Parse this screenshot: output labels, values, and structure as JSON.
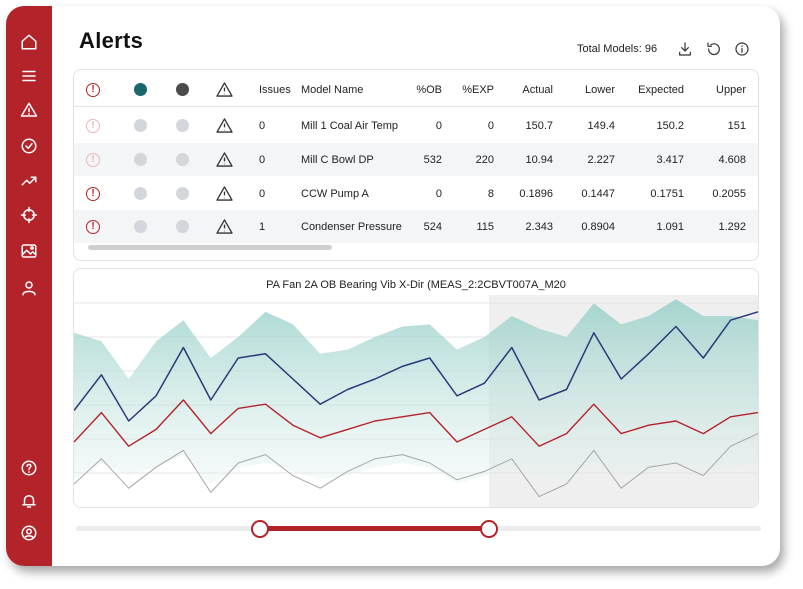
{
  "app": {
    "title": "Alerts",
    "total_models": "Total Models: 96",
    "accent": "#b3242a"
  },
  "sidebar": {
    "top_items": [
      "home-icon",
      "menu-icon",
      "warning-icon",
      "check-circle-icon",
      "trend-icon",
      "crosshair-icon",
      "image-icon",
      "user-icon"
    ],
    "bottom_items": [
      "help-icon",
      "bell-icon",
      "account-icon"
    ]
  },
  "toolbar": {
    "icons": [
      "download-icon",
      "refresh-icon",
      "info-icon"
    ]
  },
  "table": {
    "columns": {
      "alert": "!",
      "issues": "Issues",
      "model_name": "Model Name",
      "pct_ob": "%OB",
      "pct_exp": "%EXP",
      "actual": "Actual",
      "lower": "Lower",
      "expected": "Expected",
      "upper": "Upper"
    },
    "header_dot_colors": {
      "teal": "#19676d",
      "dark": "#4a4a4a"
    },
    "rows": [
      {
        "alert": "!",
        "alert_active": false,
        "issues": "0",
        "model_name": "Mill 1 Coal Air Temp",
        "pct_ob": "0",
        "pct_exp": "0",
        "actual": "150.7",
        "lower": "149.4",
        "expected": "150.2",
        "upper": "151"
      },
      {
        "alert": "!",
        "alert_active": false,
        "issues": "0",
        "model_name": "Mill C Bowl DP",
        "pct_ob": "532",
        "pct_exp": "220",
        "actual": "10.94",
        "lower": "2.227",
        "expected": "3.417",
        "upper": "4.608"
      },
      {
        "alert": "!",
        "alert_active": true,
        "issues": "0",
        "model_name": "CCW Pump A",
        "pct_ob": "0",
        "pct_exp": "8",
        "actual": "0.1896",
        "lower": "0.1447",
        "expected": "0.1751",
        "upper": "0.2055"
      },
      {
        "alert": "!",
        "alert_active": true,
        "issues": "1",
        "model_name": "Condenser Pressure",
        "pct_ob": "524",
        "pct_exp": "115",
        "actual": "2.343",
        "lower": "0.8904",
        "expected": "1.091",
        "upper": "1.292"
      }
    ]
  },
  "chart": {
    "title": "PA Fan 2A OB Bearing Vib X-Dir (MEAS_2:2CBVT007A_M20",
    "colors": {
      "actual": "#2c3a7a",
      "expected": "#b3242a",
      "lower": "#a6a6a6",
      "band": "#bfe0dc"
    }
  },
  "chart_data": {
    "type": "line",
    "title": "PA Fan 2A OB Bearing Vib X-Dir (MEAS_2:2CBVT007A_M20",
    "xlabel": "",
    "ylabel": "",
    "x": [
      0,
      4,
      8,
      12,
      16,
      20,
      24,
      28,
      32,
      36,
      40,
      44,
      48,
      52,
      56,
      60,
      64,
      68,
      72,
      76,
      80,
      84,
      88,
      92,
      96,
      100
    ],
    "ylim": [
      0,
      100
    ],
    "series": [
      {
        "values": [
          45,
          62,
          40,
          52,
          75,
          50,
          70,
          72,
          60,
          48,
          55,
          60,
          66,
          70,
          52,
          58,
          75,
          50,
          55,
          82,
          60,
          72,
          85,
          70,
          88,
          92
        ]
      },
      {
        "values": [
          30,
          44,
          28,
          36,
          50,
          34,
          46,
          48,
          38,
          32,
          36,
          40,
          42,
          44,
          30,
          36,
          42,
          28,
          34,
          48,
          34,
          38,
          40,
          34,
          42,
          44
        ]
      },
      {
        "values": [
          10,
          22,
          8,
          18,
          26,
          6,
          20,
          24,
          14,
          8,
          16,
          22,
          24,
          20,
          12,
          16,
          22,
          4,
          10,
          26,
          8,
          18,
          20,
          14,
          28,
          34
        ]
      },
      {
        "values": [
          82,
          78,
          60,
          78,
          88,
          70,
          80,
          92,
          86,
          72,
          74,
          80,
          85,
          86,
          74,
          80,
          90,
          84,
          80,
          96,
          86,
          90,
          98,
          90,
          90,
          88
        ]
      },
      {
        "values": [
          12,
          20,
          14,
          18,
          24,
          10,
          18,
          20,
          16,
          12,
          14,
          18,
          20,
          18,
          10,
          14,
          18,
          14,
          12,
          20,
          14,
          16,
          20,
          16,
          18,
          20
        ]
      }
    ]
  },
  "slider": {
    "start": 0.27,
    "end": 0.6
  }
}
